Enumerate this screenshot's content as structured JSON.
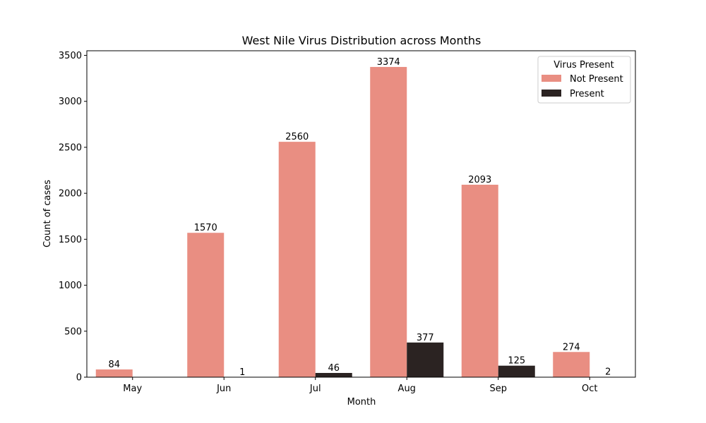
{
  "chart_data": {
    "type": "bar",
    "title": "West Nile Virus Distribution across Months",
    "xlabel": "Month",
    "ylabel": "Count of cases",
    "categories": [
      "May",
      "Jun",
      "Jul",
      "Aug",
      "Sep",
      "Oct"
    ],
    "ylim": [
      0,
      3550
    ],
    "yticks": [
      0,
      500,
      1000,
      1500,
      2000,
      2500,
      3000,
      3500
    ],
    "grid": false,
    "legend": {
      "title": "Virus Present",
      "placement": "top-right"
    },
    "series": [
      {
        "name": "Not Present",
        "color": "#e98e82",
        "values": [
          84,
          1570,
          2560,
          3374,
          2093,
          274
        ]
      },
      {
        "name": "Present",
        "color": "#2b2322",
        "values": [
          null,
          1,
          46,
          377,
          125,
          2
        ]
      }
    ]
  }
}
